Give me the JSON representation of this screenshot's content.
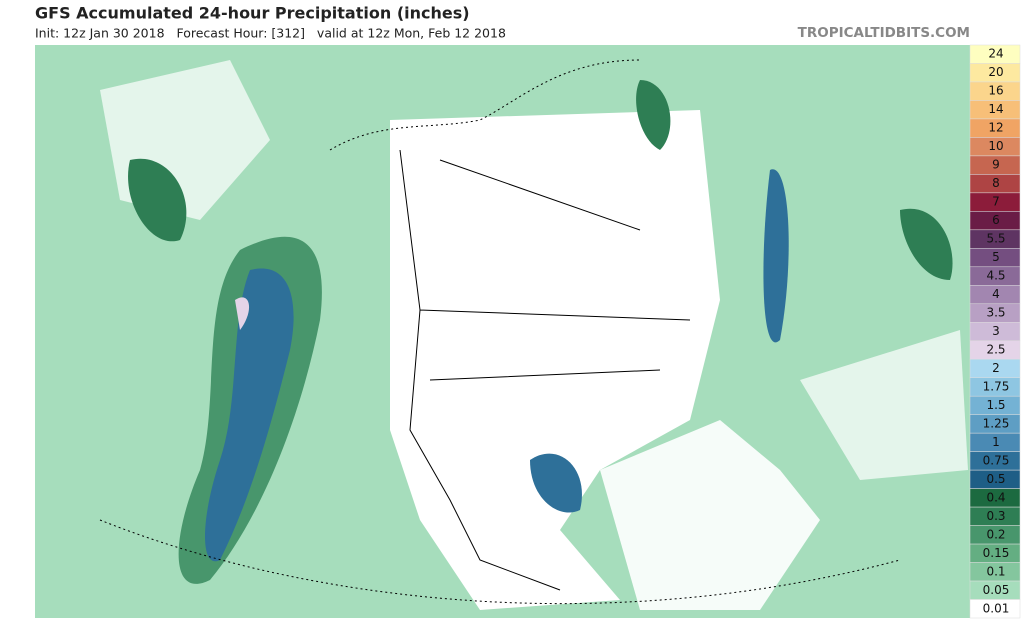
{
  "header": {
    "title": "GFS Accumulated 24-hour Precipitation (inches)",
    "subtitle": "Init: 12z Jan 30 2018   Forecast Hour: [312]   valid at 12z Mon, Feb 12 2018",
    "site": "TROPICALTIDBITS.COM"
  },
  "legend": {
    "levels": [
      {
        "label": "24",
        "color": "#fefec0"
      },
      {
        "label": "20",
        "color": "#fde9a0"
      },
      {
        "label": "16",
        "color": "#fbd58c"
      },
      {
        "label": "14",
        "color": "#f7bf78"
      },
      {
        "label": "12",
        "color": "#f0a464"
      },
      {
        "label": "10",
        "color": "#dc8860"
      },
      {
        "label": "9",
        "color": "#c66650"
      },
      {
        "label": "8",
        "color": "#ae4444"
      },
      {
        "label": "7",
        "color": "#8c1c3a"
      },
      {
        "label": "6",
        "color": "#6a1c46"
      },
      {
        "label": "5.5",
        "color": "#5e3462"
      },
      {
        "label": "5",
        "color": "#744e80"
      },
      {
        "label": "4.5",
        "color": "#8a6a98"
      },
      {
        "label": "4",
        "color": "#a286b0"
      },
      {
        "label": "3.5",
        "color": "#b8a0c4"
      },
      {
        "label": "3",
        "color": "#cebbd8"
      },
      {
        "label": "2.5",
        "color": "#e4d4e8"
      },
      {
        "label": "2",
        "color": "#aad8f0"
      },
      {
        "label": "1.75",
        "color": "#8ec6e2"
      },
      {
        "label": "1.5",
        "color": "#74b2d4"
      },
      {
        "label": "1.25",
        "color": "#5e9ec4"
      },
      {
        "label": "1",
        "color": "#4a8ab4"
      },
      {
        "label": "0.75",
        "color": "#2e7099"
      },
      {
        "label": "0.5",
        "color": "#1e5e86"
      },
      {
        "label": "0.4",
        "color": "#1c6a40"
      },
      {
        "label": "0.3",
        "color": "#2e7e54"
      },
      {
        "label": "0.2",
        "color": "#48966c"
      },
      {
        "label": "0.15",
        "color": "#64ae82"
      },
      {
        "label": "0.1",
        "color": "#84c69e"
      },
      {
        "label": "0.05",
        "color": "#a6ddbc"
      },
      {
        "label": "0.01",
        "color": "#ffffff"
      }
    ]
  }
}
